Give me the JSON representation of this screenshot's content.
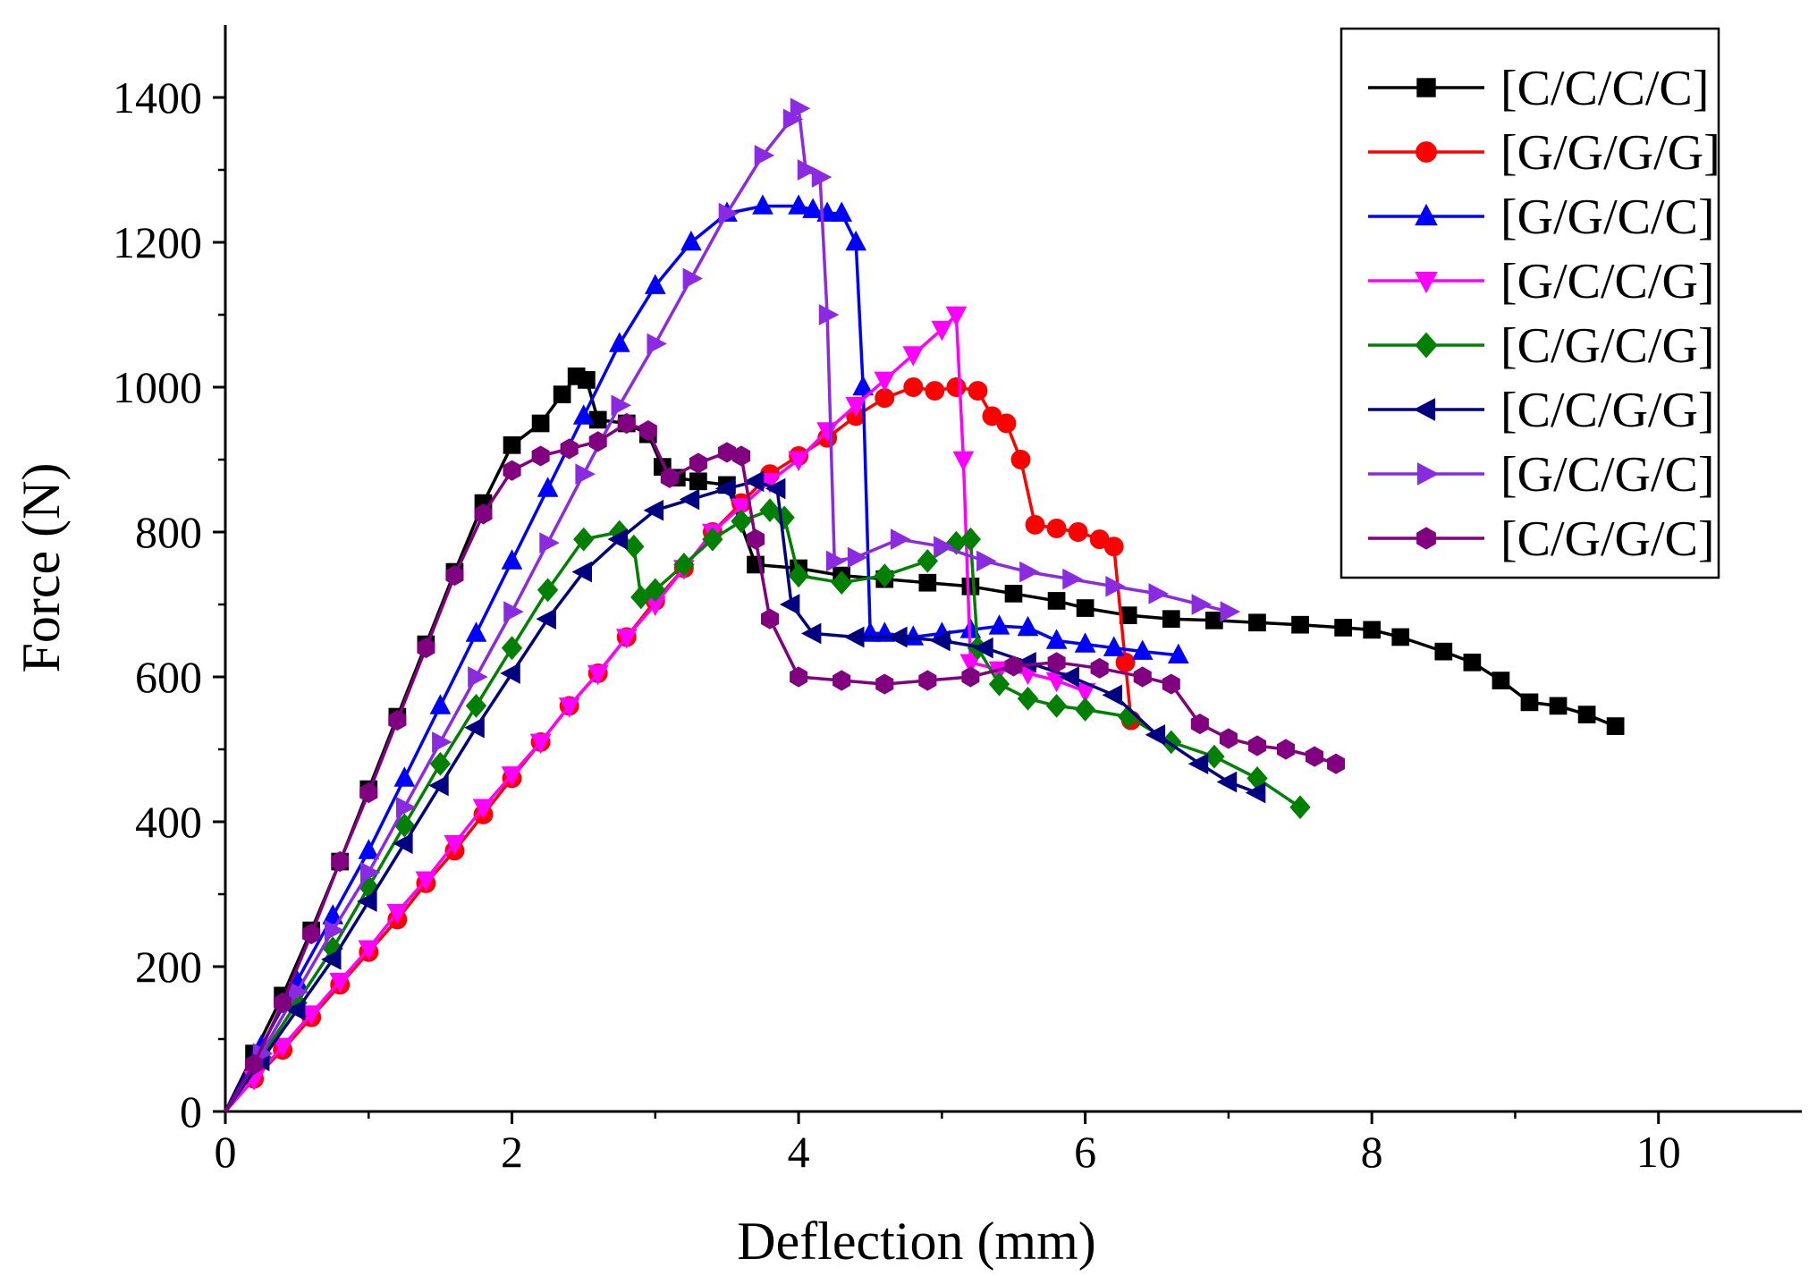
{
  "chart_data": {
    "type": "line",
    "title": "",
    "xlabel": "Deflection (mm)",
    "ylabel": "Force (N)",
    "xlim": [
      0,
      11
    ],
    "ylim": [
      0,
      1500
    ],
    "xticks": [
      0,
      2,
      4,
      6,
      8,
      10
    ],
    "yticks": [
      0,
      200,
      400,
      600,
      800,
      1000,
      1200,
      1400
    ],
    "grid": false,
    "legend_position": "top-right",
    "series": [
      {
        "name": "[C/C/C/C]",
        "color": "#000000",
        "marker": "square",
        "x": [
          0,
          0.2,
          0.4,
          0.6,
          0.8,
          1.0,
          1.2,
          1.4,
          1.6,
          1.8,
          2.0,
          2.2,
          2.35,
          2.45,
          2.52,
          2.6,
          2.8,
          2.95,
          3.05,
          3.15,
          3.3,
          3.5,
          3.7,
          4.0,
          4.3,
          4.6,
          4.9,
          5.2,
          5.5,
          5.8,
          6.0,
          6.3,
          6.6,
          6.9,
          7.2,
          7.5,
          7.8,
          8.0,
          8.2,
          8.5,
          8.7,
          8.9,
          9.1,
          9.3,
          9.5,
          9.7
        ],
        "y": [
          0,
          80,
          160,
          250,
          345,
          445,
          545,
          645,
          745,
          840,
          920,
          950,
          990,
          1015,
          1010,
          955,
          950,
          935,
          890,
          875,
          870,
          865,
          755,
          750,
          740,
          735,
          730,
          725,
          715,
          705,
          695,
          685,
          680,
          678,
          675,
          672,
          668,
          665,
          655,
          635,
          620,
          595,
          565,
          560,
          548,
          532
        ]
      },
      {
        "name": "[G/G/G/G]",
        "color": "#ff0000",
        "marker": "circle",
        "x": [
          0,
          0.2,
          0.4,
          0.6,
          0.8,
          1.0,
          1.2,
          1.4,
          1.6,
          1.8,
          2.0,
          2.2,
          2.4,
          2.6,
          2.8,
          3.0,
          3.2,
          3.4,
          3.6,
          3.8,
          4.0,
          4.2,
          4.4,
          4.6,
          4.8,
          4.95,
          5.1,
          5.25,
          5.35,
          5.45,
          5.55,
          5.65,
          5.8,
          5.95,
          6.1,
          6.2,
          6.28,
          6.32
        ],
        "y": [
          0,
          45,
          85,
          130,
          175,
          220,
          265,
          315,
          360,
          410,
          460,
          510,
          560,
          605,
          655,
          705,
          750,
          800,
          840,
          880,
          905,
          930,
          960,
          985,
          1000,
          995,
          1000,
          995,
          960,
          950,
          900,
          810,
          805,
          800,
          790,
          780,
          620,
          540
        ]
      },
      {
        "name": "[G/G/C/C]",
        "color": "#0000ff",
        "marker": "triangle-up",
        "x": [
          0,
          0.25,
          0.5,
          0.75,
          1.0,
          1.25,
          1.5,
          1.75,
          2.0,
          2.25,
          2.5,
          2.75,
          3.0,
          3.25,
          3.5,
          3.75,
          4.0,
          4.1,
          4.2,
          4.3,
          4.4,
          4.45,
          4.5,
          4.6,
          4.8,
          5.0,
          5.2,
          5.4,
          5.6,
          5.8,
          6.0,
          6.2,
          6.4,
          6.65
        ],
        "y": [
          0,
          90,
          180,
          270,
          360,
          460,
          560,
          660,
          760,
          860,
          960,
          1060,
          1140,
          1200,
          1240,
          1250,
          1250,
          1245,
          1240,
          1240,
          1200,
          1000,
          660,
          660,
          655,
          660,
          665,
          670,
          668,
          650,
          645,
          640,
          635,
          630
        ]
      },
      {
        "name": "[G/C/C/G]",
        "color": "#ff00ff",
        "marker": "triangle-down",
        "x": [
          0,
          0.2,
          0.4,
          0.6,
          0.8,
          1.0,
          1.2,
          1.4,
          1.6,
          1.8,
          2.0,
          2.2,
          2.4,
          2.6,
          2.8,
          3.0,
          3.2,
          3.4,
          3.6,
          3.8,
          4.0,
          4.2,
          4.4,
          4.6,
          4.8,
          5.0,
          5.1,
          5.15,
          5.2,
          5.4,
          5.6,
          5.8,
          6.0
        ],
        "y": [
          0,
          45,
          90,
          135,
          180,
          225,
          275,
          320,
          370,
          420,
          465,
          510,
          560,
          605,
          655,
          700,
          750,
          800,
          835,
          870,
          900,
          940,
          975,
          1010,
          1045,
          1080,
          1100,
          900,
          620,
          610,
          605,
          595,
          580
        ]
      },
      {
        "name": "[C/G/C/G]",
        "color": "#008000",
        "marker": "diamond",
        "x": [
          0,
          0.25,
          0.5,
          0.75,
          1.0,
          1.25,
          1.5,
          1.75,
          2.0,
          2.25,
          2.5,
          2.75,
          2.85,
          2.9,
          3.0,
          3.2,
          3.4,
          3.6,
          3.8,
          3.9,
          4.0,
          4.3,
          4.6,
          4.9,
          5.1,
          5.2,
          5.25,
          5.4,
          5.6,
          5.8,
          6.0,
          6.3,
          6.6,
          6.9,
          7.2,
          7.5
        ],
        "y": [
          0,
          75,
          150,
          225,
          310,
          395,
          480,
          560,
          640,
          720,
          790,
          800,
          780,
          710,
          720,
          755,
          790,
          815,
          830,
          820,
          740,
          730,
          740,
          760,
          785,
          790,
          640,
          590,
          570,
          560,
          555,
          545,
          510,
          490,
          460,
          420
        ]
      },
      {
        "name": "[C/C/G/G]",
        "color": "#000080",
        "marker": "triangle-left",
        "x": [
          0,
          0.25,
          0.5,
          0.75,
          1.0,
          1.25,
          1.5,
          1.75,
          2.0,
          2.25,
          2.5,
          2.75,
          3.0,
          3.25,
          3.5,
          3.7,
          3.85,
          3.95,
          4.1,
          4.4,
          4.7,
          5.0,
          5.3,
          5.6,
          5.9,
          6.2,
          6.5,
          6.8,
          7.0,
          7.2
        ],
        "y": [
          0,
          70,
          140,
          210,
          290,
          370,
          450,
          530,
          605,
          680,
          745,
          790,
          830,
          845,
          860,
          870,
          860,
          700,
          660,
          655,
          655,
          650,
          640,
          620,
          600,
          575,
          520,
          480,
          455,
          440
        ]
      },
      {
        "name": "[G/C/G/C]",
        "color": "#8a2be2",
        "marker": "triangle-right",
        "x": [
          0,
          0.25,
          0.5,
          0.75,
          1.0,
          1.25,
          1.5,
          1.75,
          2.0,
          2.25,
          2.5,
          2.75,
          3.0,
          3.25,
          3.5,
          3.75,
          3.95,
          4.0,
          4.05,
          4.15,
          4.2,
          4.25,
          4.4,
          4.7,
          5.0,
          5.3,
          5.6,
          5.9,
          6.2,
          6.5,
          6.8,
          7.0
        ],
        "y": [
          0,
          80,
          165,
          250,
          330,
          420,
          510,
          600,
          690,
          785,
          880,
          975,
          1060,
          1150,
          1240,
          1320,
          1370,
          1385,
          1300,
          1290,
          1100,
          760,
          765,
          790,
          780,
          760,
          745,
          735,
          725,
          715,
          700,
          690
        ]
      },
      {
        "name": "[C/G/G/C]",
        "color": "#800080",
        "marker": "hexagon",
        "x": [
          0,
          0.2,
          0.4,
          0.6,
          0.8,
          1.0,
          1.2,
          1.4,
          1.6,
          1.8,
          2.0,
          2.2,
          2.4,
          2.6,
          2.8,
          2.95,
          3.1,
          3.3,
          3.5,
          3.6,
          3.7,
          3.8,
          4.0,
          4.3,
          4.6,
          4.9,
          5.2,
          5.5,
          5.8,
          6.1,
          6.4,
          6.6,
          6.8,
          7.0,
          7.2,
          7.4,
          7.6,
          7.75
        ],
        "y": [
          0,
          65,
          150,
          245,
          345,
          440,
          540,
          640,
          740,
          825,
          885,
          905,
          915,
          925,
          950,
          940,
          875,
          895,
          910,
          905,
          790,
          680,
          600,
          595,
          590,
          595,
          600,
          615,
          620,
          612,
          600,
          590,
          535,
          515,
          505,
          500,
          490,
          480
        ]
      }
    ]
  }
}
